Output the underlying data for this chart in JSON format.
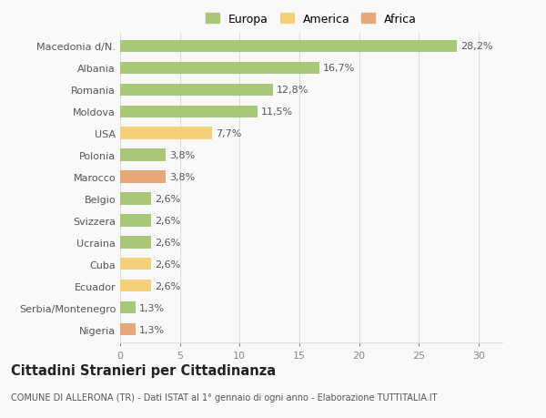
{
  "categories": [
    "Nigeria",
    "Serbia/Montenegro",
    "Ecuador",
    "Cuba",
    "Ucraina",
    "Svizzera",
    "Belgio",
    "Marocco",
    "Polonia",
    "USA",
    "Moldova",
    "Romania",
    "Albania",
    "Macedonia d/N."
  ],
  "values": [
    1.3,
    1.3,
    2.6,
    2.6,
    2.6,
    2.6,
    2.6,
    3.8,
    3.8,
    7.7,
    11.5,
    12.8,
    16.7,
    28.2
  ],
  "bar_colors": [
    "#e8a87c",
    "#a8c87a",
    "#f5d07a",
    "#f5d07a",
    "#a8c87a",
    "#a8c87a",
    "#a8c87a",
    "#e8a87c",
    "#a8c87a",
    "#f5d07a",
    "#a8c87a",
    "#a8c87a",
    "#a8c87a",
    "#a8c87a"
  ],
  "labels": [
    "1,3%",
    "1,3%",
    "2,6%",
    "2,6%",
    "2,6%",
    "2,6%",
    "2,6%",
    "3,8%",
    "3,8%",
    "7,7%",
    "11,5%",
    "12,8%",
    "16,7%",
    "28,2%"
  ],
  "legend_labels": [
    "Europa",
    "America",
    "Africa"
  ],
  "legend_colors": [
    "#a8c87a",
    "#f5d07a",
    "#e8a87c"
  ],
  "title": "Cittadini Stranieri per Cittadinanza",
  "subtitle": "COMUNE DI ALLERONA (TR) - Dati ISTAT al 1° gennaio di ogni anno - Elaborazione TUTTITALIA.IT",
  "xlim": [
    0,
    32
  ],
  "xticks": [
    0,
    5,
    10,
    15,
    20,
    25,
    30
  ],
  "background_color": "#f9f9f9",
  "grid_color": "#dddddd",
  "bar_height": 0.55,
  "label_fontsize": 8,
  "tick_fontsize": 8,
  "title_fontsize": 10.5,
  "subtitle_fontsize": 7
}
